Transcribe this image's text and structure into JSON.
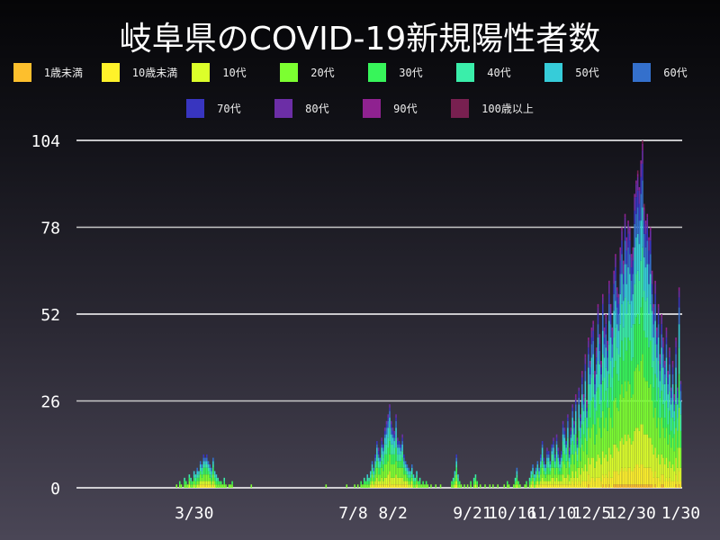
{
  "chart_data": {
    "type": "bar",
    "stacked": true,
    "title": "岐阜県のCOVID-19新規陽性者数",
    "xlabel": "",
    "ylabel": "",
    "ylim": [
      0,
      104
    ],
    "y_ticks": [
      0,
      26,
      52,
      78,
      104
    ],
    "grid": true,
    "legend_placement": "top",
    "xlim": [
      "2020-01-16",
      "2021-02-01"
    ],
    "x_start": "2020-03-01",
    "x_ticks": [
      {
        "label": "3/30",
        "date": "2020-03-30"
      },
      {
        "label": "7/8",
        "date": "2020-07-08"
      },
      {
        "label": "8/2",
        "date": "2020-08-02"
      },
      {
        "label": "9/21",
        "date": "2020-09-21"
      },
      {
        "label": "10/16",
        "date": "2020-10-16"
      },
      {
        "label": "11/10",
        "date": "2020-11-10"
      },
      {
        "label": "12/5",
        "date": "2020-12-05"
      },
      {
        "label": "12/30",
        "date": "2020-12-30"
      },
      {
        "label": "1/30",
        "date": "2021-01-30"
      }
    ],
    "series": [
      {
        "name": "1歳未満",
        "color": "#fdbf2d",
        "share": 0.01
      },
      {
        "name": "10歳未満",
        "color": "#fff22a",
        "share": 0.06
      },
      {
        "name": "10代",
        "color": "#dcff2a",
        "share": 0.12
      },
      {
        "name": "20代",
        "color": "#7cff31",
        "share": 0.2
      },
      {
        "name": "30代",
        "color": "#37f55a",
        "share": 0.16
      },
      {
        "name": "40代",
        "color": "#3aeeaa",
        "share": 0.14
      },
      {
        "name": "50代",
        "color": "#36ccd9",
        "share": 0.12
      },
      {
        "name": "60代",
        "color": "#3470cc",
        "share": 0.08
      },
      {
        "name": "70代",
        "color": "#3835bf",
        "share": 0.05
      },
      {
        "name": "80代",
        "color": "#6c2ea6",
        "share": 0.04
      },
      {
        "name": "90代",
        "color": "#8f2290",
        "share": 0.015
      },
      {
        "name": "100歳以上",
        "color": "#782050",
        "share": 0.005
      }
    ],
    "daily_totals": [
      0,
      0,
      0,
      0,
      0,
      0,
      0,
      0,
      0,
      0,
      0,
      0,
      0,
      0,
      0,
      0,
      0,
      0,
      1,
      0,
      2,
      1,
      0,
      3,
      2,
      1,
      4,
      3,
      2,
      5,
      4,
      6,
      5,
      8,
      7,
      10,
      9,
      10,
      8,
      7,
      6,
      9,
      5,
      4,
      3,
      2,
      2,
      1,
      3,
      1,
      0,
      1,
      1,
      2,
      0,
      0,
      0,
      0,
      0,
      0,
      0,
      0,
      0,
      0,
      0,
      1,
      0,
      0,
      0,
      0,
      0,
      0,
      0,
      0,
      0,
      0,
      0,
      0,
      0,
      0,
      0,
      0,
      0,
      0,
      0,
      0,
      0,
      0,
      0,
      0,
      0,
      0,
      0,
      0,
      0,
      0,
      0,
      0,
      0,
      0,
      0,
      0,
      0,
      0,
      0,
      0,
      0,
      0,
      0,
      0,
      0,
      0,
      1,
      0,
      0,
      0,
      0,
      0,
      0,
      0,
      0,
      0,
      0,
      0,
      0,
      1,
      0,
      0,
      0,
      0,
      1,
      0,
      1,
      0,
      2,
      1,
      3,
      2,
      4,
      3,
      5,
      8,
      6,
      10,
      14,
      12,
      9,
      15,
      13,
      18,
      20,
      22,
      25,
      20,
      18,
      17,
      22,
      15,
      14,
      13,
      16,
      10,
      8,
      7,
      6,
      5,
      7,
      4,
      3,
      5,
      2,
      3,
      1,
      2,
      1,
      2,
      1,
      0,
      1,
      0,
      0,
      1,
      0,
      0,
      1,
      0,
      0,
      0,
      0,
      0,
      0,
      2,
      3,
      5,
      10,
      4,
      2,
      1,
      0,
      1,
      0,
      1,
      0,
      2,
      0,
      3,
      4,
      2,
      0,
      1,
      0,
      0,
      1,
      0,
      0,
      1,
      0,
      1,
      0,
      0,
      1,
      0,
      0,
      0,
      1,
      0,
      2,
      1,
      0,
      0,
      1,
      3,
      6,
      2,
      1,
      0,
      0,
      1,
      2,
      0,
      3,
      5,
      7,
      4,
      6,
      8,
      6,
      10,
      14,
      9,
      7,
      12,
      11,
      8,
      13,
      15,
      10,
      16,
      12,
      9,
      11,
      20,
      18,
      14,
      22,
      12,
      18,
      25,
      20,
      28,
      15,
      30,
      22,
      35,
      28,
      40,
      26,
      45,
      38,
      48,
      50,
      35,
      42,
      55,
      46,
      38,
      58,
      48,
      52,
      44,
      62,
      55,
      48,
      65,
      70,
      60,
      58,
      72,
      78,
      68,
      82,
      75,
      80,
      78,
      70,
      72,
      88,
      92,
      95,
      90,
      98,
      104,
      85,
      80,
      82,
      75,
      78,
      65,
      55,
      62,
      48,
      55,
      40,
      52,
      45,
      38,
      48,
      35,
      42,
      30,
      38,
      28,
      45,
      30,
      60,
      32
    ]
  }
}
